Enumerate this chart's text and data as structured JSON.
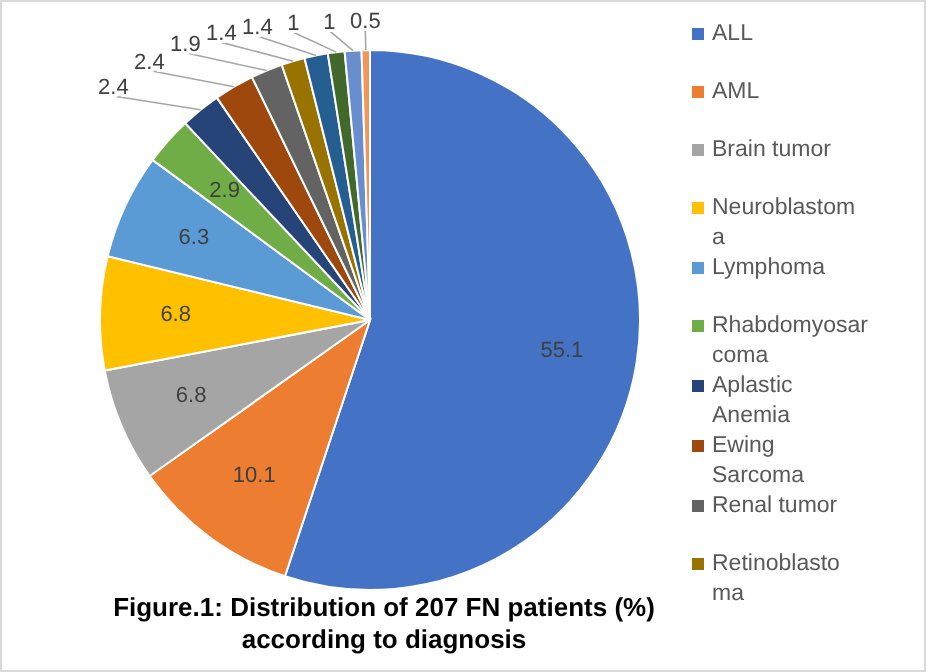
{
  "chart_data": {
    "type": "pie",
    "title": "Figure.1: Distribution of 207 FN patients (%) according to diagnosis",
    "categories": [
      "ALL",
      "AML",
      "Brain tumor",
      "Neuroblastoma",
      "Lymphoma",
      "Rhabdomyosarcoma",
      "Aplastic Anemia",
      "Ewing Sarcoma",
      "Renal tumor",
      "Retinoblastoma",
      null,
      null,
      null,
      null
    ],
    "values": [
      55.1,
      10.1,
      6.8,
      6.8,
      6.3,
      2.9,
      2.4,
      2.4,
      1.9,
      1.4,
      1.4,
      1,
      1,
      0.5
    ],
    "colors": [
      "#4472c4",
      "#ed7d31",
      "#a5a5a5",
      "#ffc000",
      "#5b9bd5",
      "#70ad47",
      "#264478",
      "#9e480e",
      "#636363",
      "#997300",
      "#255e91",
      "#43682b",
      "#698ed0",
      "#f1975a"
    ],
    "data_labels": true,
    "legend": "right"
  }
}
